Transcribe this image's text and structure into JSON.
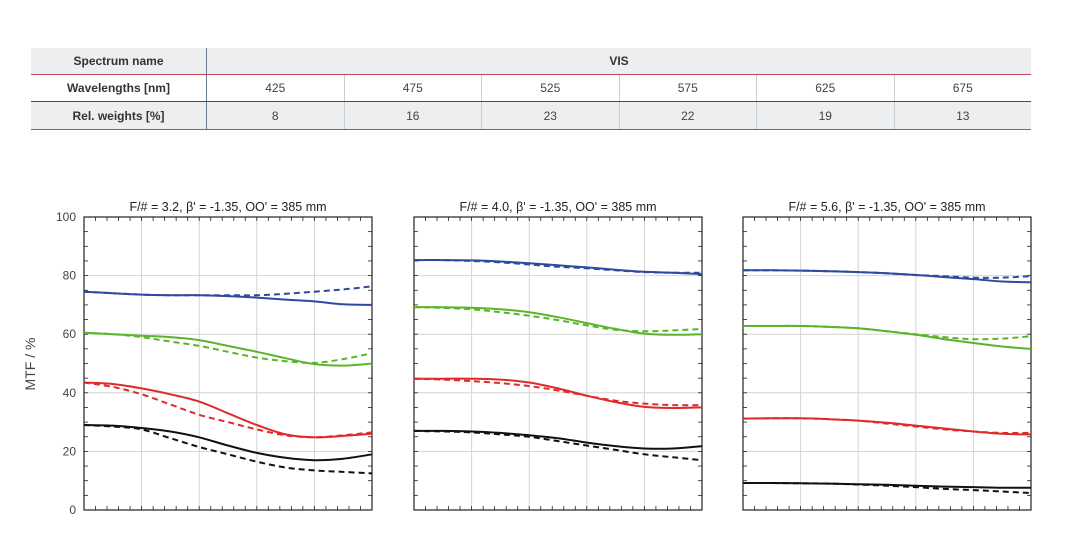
{
  "table": {
    "spectrum_label": "Spectrum name",
    "spectrum_value": "VIS",
    "wavelength_label": "Wavelengths [nm]",
    "wavelengths": [
      "425",
      "475",
      "525",
      "575",
      "625",
      "675"
    ],
    "weights_label": "Rel. weights [%]",
    "weights": [
      "8",
      "16",
      "23",
      "22",
      "19",
      "13"
    ]
  },
  "chart_data": [
    {
      "type": "line",
      "title": "F/# = 3.2, β' = -1.35, OO' = 385 mm",
      "ylabel": "MTF / %",
      "ylim": [
        0,
        100
      ],
      "yticks": [
        "0",
        "20",
        "40",
        "60",
        "80",
        "100"
      ],
      "x": [
        0,
        0.1,
        0.2,
        0.3,
        0.4,
        0.5,
        0.6,
        0.7,
        0.8,
        0.9,
        1.0
      ],
      "grid": true,
      "series": [
        {
          "color": "#2e4a9e",
          "style": "solid",
          "values": [
            74.5,
            74.0,
            73.5,
            73.3,
            73.3,
            73.0,
            72.5,
            71.8,
            71.2,
            70.2,
            70.0
          ]
        },
        {
          "color": "#2e4a9e",
          "style": "dashed",
          "values": [
            74.5,
            74.0,
            73.5,
            73.3,
            73.3,
            73.3,
            73.3,
            73.8,
            74.5,
            75.3,
            76.3
          ]
        },
        {
          "color": "#5ab52a",
          "style": "solid",
          "values": [
            60.5,
            60.0,
            59.5,
            59.0,
            58.0,
            56.0,
            54.0,
            51.8,
            49.8,
            49.3,
            50.0
          ]
        },
        {
          "color": "#5ab52a",
          "style": "dashed",
          "values": [
            60.5,
            60.0,
            59.0,
            57.5,
            56.0,
            54.0,
            52.0,
            50.8,
            50.2,
            51.5,
            53.5
          ]
        },
        {
          "color": "#e02a2a",
          "style": "solid",
          "values": [
            43.5,
            43.0,
            41.5,
            39.5,
            37.0,
            33.0,
            29.0,
            25.8,
            24.8,
            25.3,
            26.0
          ]
        },
        {
          "color": "#e02a2a",
          "style": "dashed",
          "values": [
            43.5,
            42.0,
            39.5,
            36.0,
            32.5,
            30.0,
            27.5,
            25.5,
            24.8,
            25.5,
            26.5
          ]
        },
        {
          "color": "#111111",
          "style": "solid",
          "values": [
            29.0,
            28.8,
            28.0,
            26.8,
            24.8,
            22.0,
            19.5,
            17.8,
            17.0,
            17.5,
            19.0
          ]
        },
        {
          "color": "#111111",
          "style": "dashed",
          "values": [
            29.0,
            28.5,
            27.5,
            24.5,
            21.5,
            19.0,
            16.5,
            14.5,
            13.5,
            13.0,
            12.5
          ]
        }
      ]
    },
    {
      "type": "line",
      "title": "F/# = 4.0, β' = -1.35, OO' = 385 mm",
      "ylim": [
        0,
        100
      ],
      "x": [
        0,
        0.1,
        0.2,
        0.3,
        0.4,
        0.5,
        0.6,
        0.7,
        0.8,
        0.9,
        1.0
      ],
      "grid": true,
      "series": [
        {
          "color": "#2e4a9e",
          "style": "solid",
          "values": [
            85.3,
            85.3,
            85.2,
            84.8,
            84.2,
            83.5,
            82.8,
            82.0,
            81.3,
            81.0,
            80.5
          ]
        },
        {
          "color": "#2e4a9e",
          "style": "dashed",
          "values": [
            85.3,
            85.3,
            85.0,
            84.5,
            83.8,
            83.0,
            82.5,
            81.8,
            81.2,
            81.0,
            81.0
          ]
        },
        {
          "color": "#5ab52a",
          "style": "solid",
          "values": [
            69.2,
            69.2,
            69.0,
            68.5,
            67.5,
            65.8,
            63.8,
            61.8,
            60.2,
            59.8,
            60.0
          ]
        },
        {
          "color": "#5ab52a",
          "style": "dashed",
          "values": [
            69.2,
            69.0,
            68.5,
            67.5,
            66.3,
            64.8,
            63.0,
            61.5,
            61.0,
            61.3,
            61.8
          ]
        },
        {
          "color": "#e02a2a",
          "style": "solid",
          "values": [
            44.8,
            44.8,
            44.8,
            44.5,
            43.5,
            41.5,
            39.0,
            36.8,
            35.2,
            34.8,
            35.0
          ]
        },
        {
          "color": "#e02a2a",
          "style": "dashed",
          "values": [
            44.8,
            44.5,
            44.0,
            43.3,
            42.3,
            40.8,
            39.0,
            37.3,
            36.3,
            35.8,
            35.8
          ]
        },
        {
          "color": "#111111",
          "style": "solid",
          "values": [
            27.0,
            27.0,
            26.8,
            26.3,
            25.5,
            24.5,
            23.0,
            21.8,
            21.0,
            21.0,
            21.8
          ]
        },
        {
          "color": "#111111",
          "style": "dashed",
          "values": [
            27.0,
            26.8,
            26.5,
            25.8,
            25.0,
            23.5,
            22.0,
            20.5,
            19.0,
            18.0,
            17.0
          ]
        }
      ]
    },
    {
      "type": "line",
      "title": "F/# = 5.6, β' = -1.35, OO' = 385 mm",
      "ylim": [
        0,
        100
      ],
      "x": [
        0,
        0.1,
        0.2,
        0.3,
        0.4,
        0.5,
        0.6,
        0.7,
        0.8,
        0.9,
        1.0
      ],
      "grid": true,
      "series": [
        {
          "color": "#2e4a9e",
          "style": "solid",
          "values": [
            81.8,
            81.8,
            81.7,
            81.5,
            81.2,
            80.8,
            80.2,
            79.5,
            78.8,
            78.0,
            77.7
          ]
        },
        {
          "color": "#2e4a9e",
          "style": "dashed",
          "values": [
            81.8,
            81.8,
            81.7,
            81.5,
            81.2,
            80.8,
            80.2,
            79.8,
            79.3,
            79.3,
            79.8
          ]
        },
        {
          "color": "#5ab52a",
          "style": "solid",
          "values": [
            62.8,
            62.8,
            62.8,
            62.5,
            62.0,
            61.0,
            59.8,
            58.3,
            57.0,
            55.8,
            55.0
          ]
        },
        {
          "color": "#5ab52a",
          "style": "dashed",
          "values": [
            62.8,
            62.8,
            62.8,
            62.5,
            62.0,
            61.0,
            60.0,
            59.0,
            58.3,
            58.5,
            59.3
          ]
        },
        {
          "color": "#e02a2a",
          "style": "solid",
          "values": [
            31.2,
            31.3,
            31.3,
            31.0,
            30.5,
            29.8,
            28.8,
            27.8,
            26.8,
            26.0,
            25.8
          ]
        },
        {
          "color": "#e02a2a",
          "style": "dashed",
          "values": [
            31.2,
            31.3,
            31.3,
            31.0,
            30.5,
            29.5,
            28.5,
            27.5,
            26.8,
            26.3,
            26.3
          ]
        },
        {
          "color": "#111111",
          "style": "solid",
          "values": [
            9.2,
            9.2,
            9.1,
            9.0,
            8.8,
            8.6,
            8.3,
            8.0,
            7.8,
            7.6,
            7.6
          ]
        },
        {
          "color": "#111111",
          "style": "dashed",
          "values": [
            9.2,
            9.2,
            9.1,
            9.0,
            8.7,
            8.3,
            7.8,
            7.2,
            6.8,
            6.3,
            5.8
          ]
        }
      ]
    }
  ]
}
